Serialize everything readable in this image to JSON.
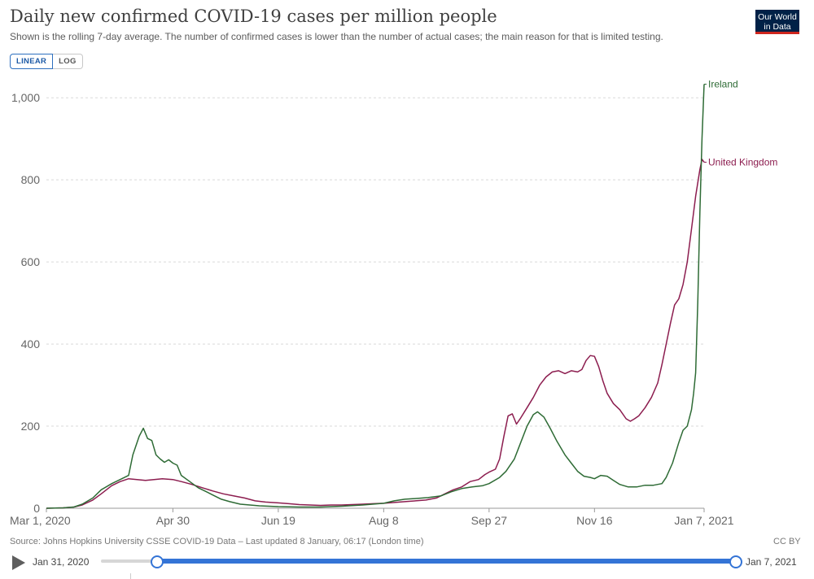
{
  "header": {
    "title": "Daily new confirmed COVID-19 cases per million people",
    "subtitle": "Shown is the rolling 7-day average. The number of confirmed cases is lower than the number of actual cases; the main reason for that is limited testing.",
    "logo_line1": "Our World",
    "logo_line2": "in Data"
  },
  "scale_toggle": {
    "linear_label": "LINEAR",
    "log_label": "LOG",
    "selected": "linear"
  },
  "colors": {
    "ireland": "#2e6b35",
    "uk": "#8c1d4f",
    "grid": "#d9d9d9",
    "axis": "#666666"
  },
  "chart_data": {
    "type": "line",
    "x_type": "date",
    "xlim": [
      "2020-03-01",
      "2021-01-07"
    ],
    "ylim": [
      0,
      1040
    ],
    "x_ticks": [
      {
        "date": "2020-03-01",
        "label": "Mar 1, 2020"
      },
      {
        "date": "2020-04-30",
        "label": "Apr 30"
      },
      {
        "date": "2020-06-19",
        "label": "Jun 19"
      },
      {
        "date": "2020-08-08",
        "label": "Aug 8"
      },
      {
        "date": "2020-09-27",
        "label": "Sep 27"
      },
      {
        "date": "2020-11-16",
        "label": "Nov 16"
      },
      {
        "date": "2021-01-07",
        "label": "Jan 7, 2021"
      }
    ],
    "y_ticks": [
      {
        "value": 0,
        "label": "0"
      },
      {
        "value": 200,
        "label": "200"
      },
      {
        "value": 400,
        "label": "400"
      },
      {
        "value": 600,
        "label": "600"
      },
      {
        "value": 800,
        "label": "800"
      },
      {
        "value": 1000,
        "label": "1,000"
      }
    ],
    "grid": "horizontal-dashed",
    "legend": "end-of-line labels",
    "series": [
      {
        "name": "Ireland",
        "color": "#2e6b35",
        "points": [
          [
            "2020-03-01",
            0
          ],
          [
            "2020-03-09",
            1
          ],
          [
            "2020-03-14",
            3
          ],
          [
            "2020-03-18",
            10
          ],
          [
            "2020-03-23",
            25
          ],
          [
            "2020-03-27",
            45
          ],
          [
            "2020-04-01",
            60
          ],
          [
            "2020-04-05",
            70
          ],
          [
            "2020-04-09",
            80
          ],
          [
            "2020-04-11",
            130
          ],
          [
            "2020-04-14",
            175
          ],
          [
            "2020-04-16",
            195
          ],
          [
            "2020-04-18",
            170
          ],
          [
            "2020-04-20",
            165
          ],
          [
            "2020-04-22",
            130
          ],
          [
            "2020-04-24",
            120
          ],
          [
            "2020-04-26",
            112
          ],
          [
            "2020-04-28",
            118
          ],
          [
            "2020-04-30",
            110
          ],
          [
            "2020-05-02",
            105
          ],
          [
            "2020-05-04",
            80
          ],
          [
            "2020-05-08",
            65
          ],
          [
            "2020-05-12",
            50
          ],
          [
            "2020-05-16",
            40
          ],
          [
            "2020-05-19",
            32
          ],
          [
            "2020-05-23",
            22
          ],
          [
            "2020-05-27",
            16
          ],
          [
            "2020-06-01",
            10
          ],
          [
            "2020-06-10",
            6
          ],
          [
            "2020-06-19",
            4
          ],
          [
            "2020-06-29",
            3
          ],
          [
            "2020-07-09",
            3
          ],
          [
            "2020-07-19",
            5
          ],
          [
            "2020-07-29",
            8
          ],
          [
            "2020-08-08",
            12
          ],
          [
            "2020-08-13",
            18
          ],
          [
            "2020-08-18",
            22
          ],
          [
            "2020-08-24",
            24
          ],
          [
            "2020-08-29",
            26
          ],
          [
            "2020-09-04",
            30
          ],
          [
            "2020-09-09",
            40
          ],
          [
            "2020-09-14",
            48
          ],
          [
            "2020-09-19",
            52
          ],
          [
            "2020-09-24",
            55
          ],
          [
            "2020-09-27",
            60
          ],
          [
            "2020-10-02",
            75
          ],
          [
            "2020-10-05",
            90
          ],
          [
            "2020-10-09",
            120
          ],
          [
            "2020-10-12",
            160
          ],
          [
            "2020-10-15",
            200
          ],
          [
            "2020-10-18",
            228
          ],
          [
            "2020-10-20",
            235
          ],
          [
            "2020-10-23",
            222
          ],
          [
            "2020-10-26",
            195
          ],
          [
            "2020-10-29",
            165
          ],
          [
            "2020-11-02",
            130
          ],
          [
            "2020-11-05",
            110
          ],
          [
            "2020-11-08",
            90
          ],
          [
            "2020-11-11",
            78
          ],
          [
            "2020-11-14",
            75
          ],
          [
            "2020-11-16",
            72
          ],
          [
            "2020-11-19",
            80
          ],
          [
            "2020-11-22",
            78
          ],
          [
            "2020-11-25",
            68
          ],
          [
            "2020-11-28",
            58
          ],
          [
            "2020-12-02",
            52
          ],
          [
            "2020-12-06",
            52
          ],
          [
            "2020-12-10",
            56
          ],
          [
            "2020-12-14",
            56
          ],
          [
            "2020-12-18",
            60
          ],
          [
            "2020-12-20",
            75
          ],
          [
            "2020-12-23",
            110
          ],
          [
            "2020-12-26",
            160
          ],
          [
            "2020-12-28",
            190
          ],
          [
            "2020-12-30",
            200
          ],
          [
            "2021-01-01",
            240
          ],
          [
            "2021-01-02",
            280
          ],
          [
            "2021-01-03",
            330
          ],
          [
            "2021-01-04",
            500
          ],
          [
            "2021-01-05",
            720
          ],
          [
            "2021-01-06",
            900
          ],
          [
            "2021-01-07",
            1033
          ]
        ]
      },
      {
        "name": "United Kingdom",
        "color": "#8c1d4f",
        "points": [
          [
            "2020-03-01",
            0
          ],
          [
            "2020-03-09",
            1
          ],
          [
            "2020-03-14",
            3
          ],
          [
            "2020-03-18",
            8
          ],
          [
            "2020-03-23",
            20
          ],
          [
            "2020-03-27",
            35
          ],
          [
            "2020-04-01",
            55
          ],
          [
            "2020-04-05",
            65
          ],
          [
            "2020-04-09",
            72
          ],
          [
            "2020-04-13",
            70
          ],
          [
            "2020-04-17",
            68
          ],
          [
            "2020-04-21",
            70
          ],
          [
            "2020-04-25",
            72
          ],
          [
            "2020-04-30",
            70
          ],
          [
            "2020-05-04",
            65
          ],
          [
            "2020-05-09",
            58
          ],
          [
            "2020-05-14",
            50
          ],
          [
            "2020-05-19",
            42
          ],
          [
            "2020-05-24",
            35
          ],
          [
            "2020-05-29",
            30
          ],
          [
            "2020-06-03",
            25
          ],
          [
            "2020-06-08",
            18
          ],
          [
            "2020-06-13",
            15
          ],
          [
            "2020-06-19",
            13
          ],
          [
            "2020-06-24",
            11
          ],
          [
            "2020-06-29",
            9
          ],
          [
            "2020-07-04",
            8
          ],
          [
            "2020-07-09",
            7
          ],
          [
            "2020-07-14",
            8
          ],
          [
            "2020-07-19",
            8
          ],
          [
            "2020-07-24",
            9
          ],
          [
            "2020-07-29",
            10
          ],
          [
            "2020-08-03",
            11
          ],
          [
            "2020-08-08",
            12
          ],
          [
            "2020-08-13",
            14
          ],
          [
            "2020-08-18",
            16
          ],
          [
            "2020-08-23",
            18
          ],
          [
            "2020-08-28",
            20
          ],
          [
            "2020-09-02",
            25
          ],
          [
            "2020-09-06",
            35
          ],
          [
            "2020-09-10",
            45
          ],
          [
            "2020-09-14",
            52
          ],
          [
            "2020-09-18",
            65
          ],
          [
            "2020-09-22",
            70
          ],
          [
            "2020-09-25",
            82
          ],
          [
            "2020-09-27",
            88
          ],
          [
            "2020-09-30",
            95
          ],
          [
            "2020-10-02",
            120
          ],
          [
            "2020-10-04",
            175
          ],
          [
            "2020-10-06",
            225
          ],
          [
            "2020-10-08",
            230
          ],
          [
            "2020-10-10",
            205
          ],
          [
            "2020-10-12",
            220
          ],
          [
            "2020-10-15",
            245
          ],
          [
            "2020-10-18",
            270
          ],
          [
            "2020-10-21",
            300
          ],
          [
            "2020-10-24",
            320
          ],
          [
            "2020-10-27",
            332
          ],
          [
            "2020-10-30",
            335
          ],
          [
            "2020-11-02",
            328
          ],
          [
            "2020-11-05",
            335
          ],
          [
            "2020-11-08",
            332
          ],
          [
            "2020-11-10",
            338
          ],
          [
            "2020-11-12",
            360
          ],
          [
            "2020-11-14",
            372
          ],
          [
            "2020-11-16",
            370
          ],
          [
            "2020-11-18",
            345
          ],
          [
            "2020-11-20",
            310
          ],
          [
            "2020-11-22",
            280
          ],
          [
            "2020-11-25",
            255
          ],
          [
            "2020-11-28",
            240
          ],
          [
            "2020-12-01",
            218
          ],
          [
            "2020-12-03",
            212
          ],
          [
            "2020-12-05",
            218
          ],
          [
            "2020-12-07",
            225
          ],
          [
            "2020-12-10",
            245
          ],
          [
            "2020-12-13",
            270
          ],
          [
            "2020-12-16",
            305
          ],
          [
            "2020-12-18",
            350
          ],
          [
            "2020-12-20",
            400
          ],
          [
            "2020-12-22",
            450
          ],
          [
            "2020-12-24",
            495
          ],
          [
            "2020-12-26",
            510
          ],
          [
            "2020-12-28",
            545
          ],
          [
            "2020-12-30",
            600
          ],
          [
            "2021-01-01",
            680
          ],
          [
            "2021-01-03",
            760
          ],
          [
            "2021-01-05",
            825
          ],
          [
            "2021-01-06",
            850
          ],
          [
            "2021-01-07",
            843
          ]
        ]
      }
    ]
  },
  "footer": {
    "source": "Source: Johns Hopkins University CSSE COVID-19 Data – Last updated 8 January, 06:17 (London time)",
    "license": "CC BY"
  },
  "timeline": {
    "start_label": "Jan 31, 2020",
    "end_label": "Jan 7, 2021"
  }
}
